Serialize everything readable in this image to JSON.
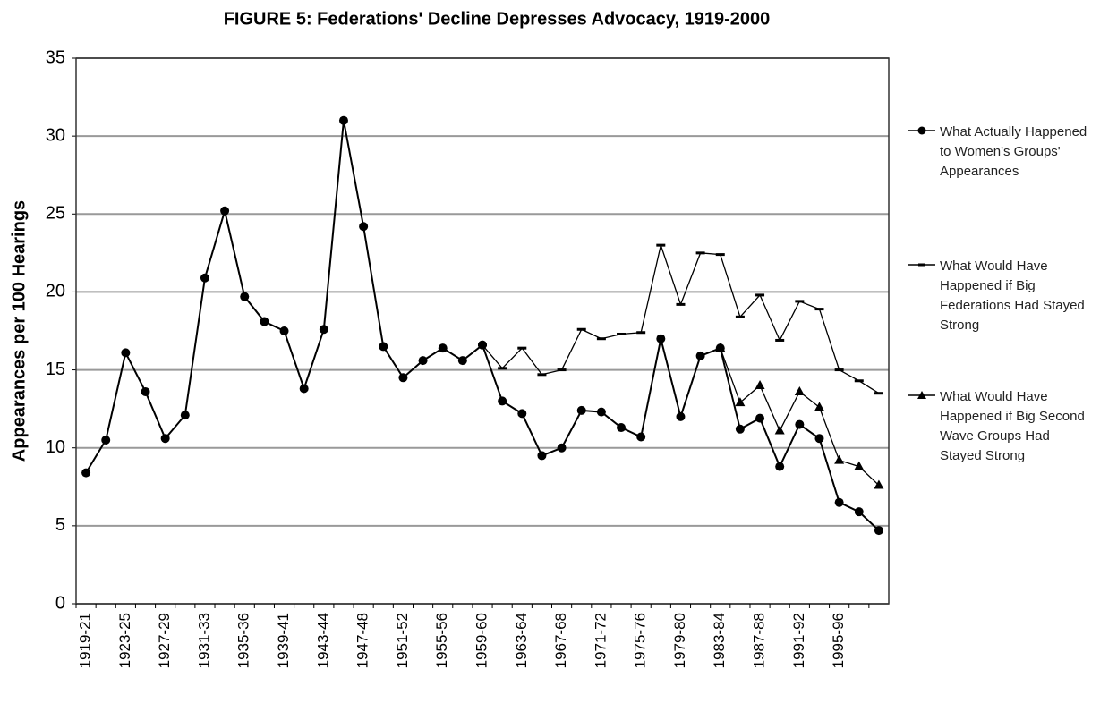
{
  "chart_data": {
    "type": "line",
    "title": "FIGURE 5: Federations' Decline Depresses Advocacy, 1919-2000",
    "y_label": "Appearances per 100 Hearings",
    "categories": [
      "1919-21",
      null,
      "1923-25",
      null,
      "1927-29",
      null,
      "1931-33",
      null,
      "1935-36",
      null,
      "1939-41",
      null,
      "1943-44",
      null,
      "1947-48",
      null,
      "1951-52",
      null,
      "1955-56",
      null,
      "1959-60",
      null,
      "1963-64",
      null,
      "1967-68",
      null,
      "1971-72",
      null,
      "1975-76",
      null,
      "1979-80",
      null,
      "1983-84",
      null,
      "1987-88",
      null,
      "1991-92",
      null,
      "1995-96",
      null,
      null
    ],
    "series": [
      {
        "name": "What Actually Happened to Women's Groups' Appearances",
        "color": "#000000",
        "marker": "circle",
        "values": [
          8.4,
          10.5,
          16.1,
          13.6,
          10.6,
          12.1,
          20.9,
          25.2,
          19.7,
          18.1,
          17.5,
          13.8,
          17.6,
          31.0,
          24.2,
          16.5,
          14.5,
          15.6,
          16.4,
          15.6,
          16.6,
          13.0,
          12.2,
          9.5,
          10.0,
          12.4,
          12.3,
          11.3,
          10.7,
          17.0,
          12.0,
          15.9,
          16.4,
          11.2,
          11.9,
          8.8,
          11.5,
          10.6,
          6.5,
          5.9,
          4.7
        ]
      },
      {
        "name": "What Would Have Happened if Big Federations Had Stayed Strong",
        "color": "#000000",
        "marker": "dash",
        "values": [
          null,
          null,
          null,
          null,
          null,
          null,
          null,
          null,
          null,
          null,
          null,
          null,
          null,
          null,
          null,
          null,
          null,
          null,
          null,
          null,
          16.6,
          15.1,
          16.4,
          14.7,
          15.0,
          17.6,
          17.0,
          17.3,
          17.4,
          23.0,
          19.2,
          22.5,
          22.4,
          18.4,
          19.8,
          16.9,
          19.4,
          18.9,
          15.0,
          14.3,
          13.5
        ]
      },
      {
        "name": "What Would Have Happened if Big Second Wave Groups Had Stayed Strong",
        "color": "#000000",
        "marker": "triangle",
        "values": [
          null,
          null,
          null,
          null,
          null,
          null,
          null,
          null,
          null,
          null,
          null,
          null,
          null,
          null,
          null,
          null,
          null,
          null,
          null,
          null,
          null,
          null,
          null,
          null,
          null,
          null,
          null,
          null,
          null,
          null,
          null,
          null,
          16.4,
          12.9,
          14.0,
          11.1,
          13.6,
          12.6,
          9.2,
          8.8,
          7.6
        ]
      }
    ],
    "ylim": [
      0,
      35
    ],
    "yticks": [
      0,
      5,
      10,
      15,
      20,
      25,
      30,
      35
    ],
    "grid": true
  }
}
